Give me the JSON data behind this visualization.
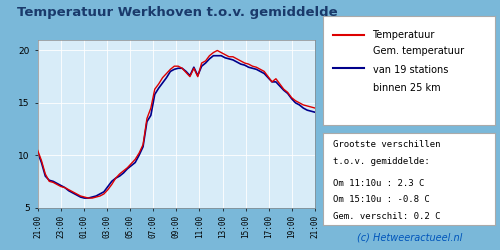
{
  "title": "Temperatuur Werkhoven t.o.v. gemiddelde",
  "title_color": "#1a3a6b",
  "bg_outer": "#7ab8d9",
  "bg_plot": "#d8ecf8",
  "grid_color": "#ffffff",
  "ylim": [
    5,
    21
  ],
  "yticks": [
    5,
    10,
    15,
    20
  ],
  "xtick_labels": [
    "21:00",
    "23:00",
    "01:00",
    "03:00",
    "05:00",
    "07:00",
    "09:00",
    "11:00",
    "13:00",
    "15:00",
    "17:00",
    "19:00",
    "21:00"
  ],
  "line1_color": "#dd0000",
  "line2_color": "#00008b",
  "legend1_label": "Temperatuur",
  "legend2_line1": "Gem. temperatuur",
  "legend2_line2": "van 19 stations",
  "legend2_line3": "binnen 25 km",
  "info_line1": "Om 11:10u : 2.3 C",
  "info_line2": "Om 15:10u : -0.8 C",
  "info_line3": "Gem. verschil: 0.2 C",
  "footer": "(c) Hetweeractueel.nl",
  "footer_color": "#0055bb",
  "temp_werkhoven": [
    10.5,
    9.5,
    8.2,
    7.5,
    7.4,
    7.2,
    7.0,
    6.9,
    6.7,
    6.5,
    6.3,
    6.1,
    6.0,
    5.9,
    5.9,
    6.0,
    6.1,
    6.3,
    6.7,
    7.2,
    7.8,
    8.2,
    8.5,
    8.8,
    9.2,
    9.6,
    10.2,
    11.0,
    13.5,
    14.5,
    16.3,
    16.8,
    17.4,
    17.8,
    18.2,
    18.5,
    18.5,
    18.3,
    17.9,
    17.5,
    18.3,
    17.5,
    18.8,
    19.0,
    19.5,
    19.8,
    20.0,
    19.8,
    19.6,
    19.4,
    19.4,
    19.2,
    19.0,
    18.8,
    18.7,
    18.5,
    18.4,
    18.2,
    18.0,
    17.5,
    17.0,
    17.3,
    16.8,
    16.3,
    16.0,
    15.5,
    15.2,
    15.0,
    14.8,
    14.7,
    14.6,
    14.5
  ],
  "temp_gem": [
    10.3,
    9.3,
    8.0,
    7.6,
    7.5,
    7.3,
    7.1,
    6.9,
    6.6,
    6.4,
    6.2,
    6.0,
    5.9,
    5.9,
    6.0,
    6.1,
    6.3,
    6.5,
    7.0,
    7.5,
    7.8,
    8.0,
    8.3,
    8.7,
    9.0,
    9.3,
    10.0,
    10.8,
    13.2,
    13.8,
    15.8,
    16.4,
    16.9,
    17.4,
    18.0,
    18.2,
    18.3,
    18.3,
    18.0,
    17.6,
    18.4,
    17.6,
    18.5,
    18.8,
    19.2,
    19.5,
    19.5,
    19.5,
    19.3,
    19.2,
    19.1,
    18.9,
    18.7,
    18.6,
    18.4,
    18.3,
    18.2,
    18.0,
    17.8,
    17.4,
    17.0,
    17.0,
    16.6,
    16.2,
    15.9,
    15.4,
    15.0,
    14.8,
    14.5,
    14.3,
    14.2,
    14.1
  ]
}
